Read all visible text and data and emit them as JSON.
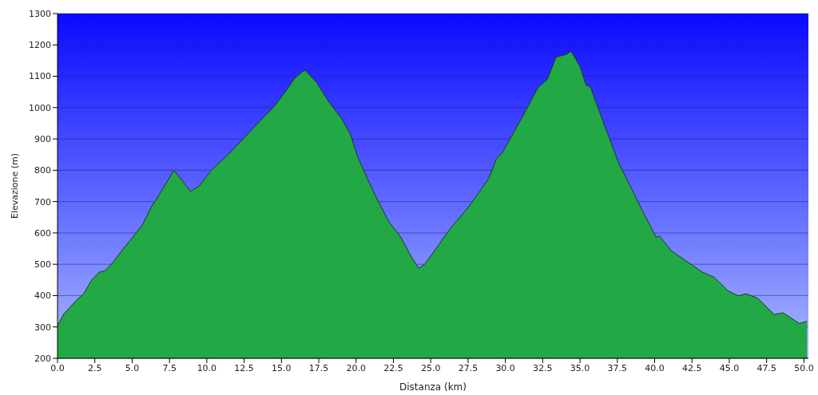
{
  "chart_data": {
    "type": "area",
    "xlabel": "Distanza  (km)",
    "ylabel": "Elevazione (m)",
    "x": [
      0,
      0.4,
      1.2,
      1.75,
      2.3,
      2.8,
      3.2,
      3.6,
      4.4,
      4.9,
      5.7,
      6.3,
      6.8,
      7.8,
      8.1,
      8.9,
      9.5,
      10.3,
      11.3,
      12.4,
      13.5,
      14.5,
      15.3,
      15.9,
      16.4,
      16.6,
      17.4,
      18.2,
      19.0,
      19.6,
      20.1,
      20.9,
      21.4,
      22.2,
      23.0,
      23.7,
      24.2,
      24.6,
      26.4,
      27.3,
      28.0,
      28.9,
      29.4,
      29.8,
      31.1,
      32.2,
      32.8,
      33.4,
      34.1,
      34.4,
      35.0,
      35.4,
      35.7,
      36.4,
      37.6,
      38.1,
      39.2,
      40.1,
      40.3,
      41.1,
      42.0,
      43.2,
      44.0,
      44.9,
      45.6,
      46.1,
      46.9,
      48.0,
      48.6,
      49.1,
      49.7,
      50.2
    ],
    "series": [
      {
        "color": "#22a845",
        "values": [
          303,
          340,
          382,
          406,
          451,
          475,
          480,
          500,
          549,
          578,
          627,
          684,
          721,
          800,
          782,
          733,
          750,
          800,
          844,
          898,
          954,
          1003,
          1053,
          1094,
          1114,
          1119,
          1077,
          1016,
          967,
          917,
          844,
          758,
          709,
          635,
          586,
          524,
          487,
          500,
          620,
          669,
          713,
          775,
          836,
          856,
          967,
          1065,
          1089,
          1161,
          1170,
          1180,
          1131,
          1072,
          1065,
          974,
          822,
          775,
          669,
          586,
          591,
          544,
          514,
          475,
          458,
          416,
          399,
          406,
          392,
          340,
          345,
          330,
          311,
          318
        ]
      }
    ],
    "xlim": [
      0,
      50.3
    ],
    "ylim": [
      200,
      1300
    ],
    "xticks": [
      {
        "value": 0,
        "label": "0.0"
      },
      {
        "value": 2.5,
        "label": "2.5"
      },
      {
        "value": 5,
        "label": "5.0"
      },
      {
        "value": 7.5,
        "label": "7.5"
      },
      {
        "value": 10,
        "label": "10.0"
      },
      {
        "value": 12.5,
        "label": "12.5"
      },
      {
        "value": 15,
        "label": "15.0"
      },
      {
        "value": 17.5,
        "label": "17.5"
      },
      {
        "value": 20,
        "label": "20.0"
      },
      {
        "value": 22.5,
        "label": "22.5"
      },
      {
        "value": 25,
        "label": "25.0"
      },
      {
        "value": 27.5,
        "label": "27.5"
      },
      {
        "value": 30,
        "label": "30.0"
      },
      {
        "value": 32.5,
        "label": "32.5"
      },
      {
        "value": 35,
        "label": "35.0"
      },
      {
        "value": 37.5,
        "label": "37.5"
      },
      {
        "value": 40,
        "label": "40.0"
      },
      {
        "value": 42.5,
        "label": "42.5"
      },
      {
        "value": 45,
        "label": "45.0"
      },
      {
        "value": 47.5,
        "label": "47.5"
      },
      {
        "value": 50,
        "label": "50.0"
      }
    ],
    "yticks": [
      200,
      300,
      400,
      500,
      600,
      700,
      800,
      900,
      1000,
      1100,
      1200,
      1300
    ],
    "grid": "y",
    "legend": false
  }
}
